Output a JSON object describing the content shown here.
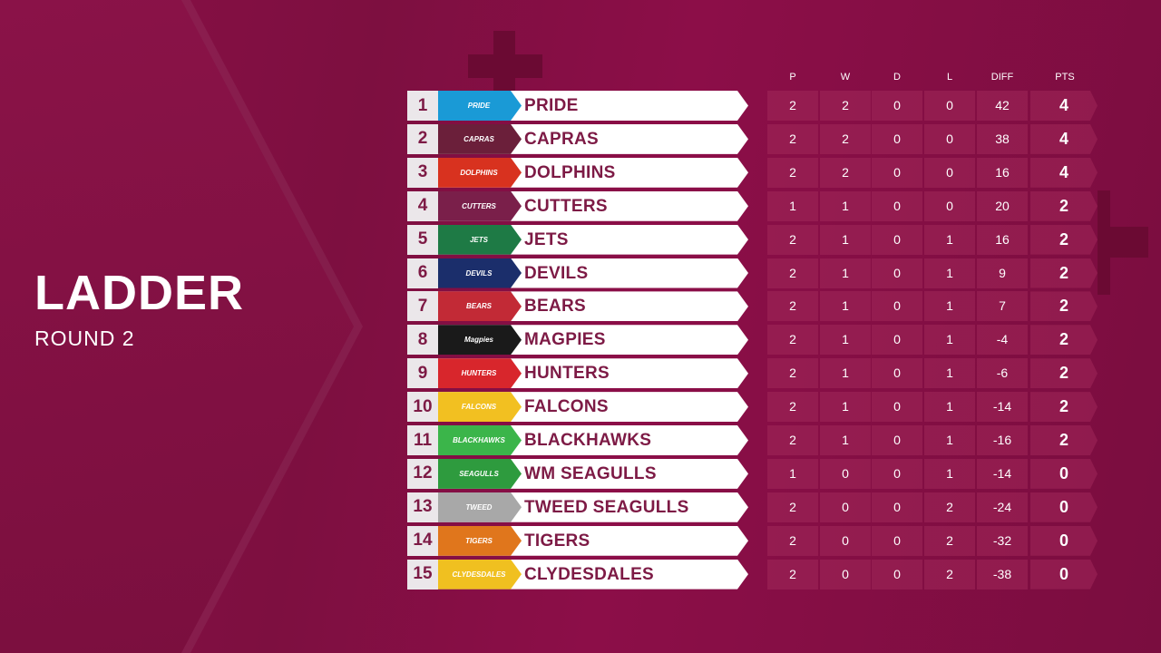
{
  "title": "LADDER",
  "subtitle": "ROUND 2",
  "columns": [
    "P",
    "W",
    "D",
    "L",
    "DIFF",
    "PTS"
  ],
  "colors": {
    "accent": "#7d1a45",
    "background": "#8a0f46"
  },
  "teams": [
    {
      "rank": "1",
      "name": "PRIDE",
      "p": "2",
      "w": "2",
      "d": "0",
      "l": "0",
      "diff": "42",
      "pts": "4",
      "logo_text": "PRIDE",
      "logo_bg": "#1a9ad6"
    },
    {
      "rank": "2",
      "name": "CAPRAS",
      "p": "2",
      "w": "2",
      "d": "0",
      "l": "0",
      "diff": "38",
      "pts": "4",
      "logo_text": "CAPRAS",
      "logo_bg": "#6b1f3a"
    },
    {
      "rank": "3",
      "name": "DOLPHINS",
      "p": "2",
      "w": "2",
      "d": "0",
      "l": "0",
      "diff": "16",
      "pts": "4",
      "logo_text": "DOLPHINS",
      "logo_bg": "#d8321f"
    },
    {
      "rank": "4",
      "name": "CUTTERS",
      "p": "1",
      "w": "1",
      "d": "0",
      "l": "0",
      "diff": "20",
      "pts": "2",
      "logo_text": "CUTTERS",
      "logo_bg": "#7a1f4a"
    },
    {
      "rank": "5",
      "name": "JETS",
      "p": "2",
      "w": "1",
      "d": "0",
      "l": "1",
      "diff": "16",
      "pts": "2",
      "logo_text": "JETS",
      "logo_bg": "#1e7a45"
    },
    {
      "rank": "6",
      "name": "DEVILS",
      "p": "2",
      "w": "1",
      "d": "0",
      "l": "1",
      "diff": "9",
      "pts": "2",
      "logo_text": "DEVILS",
      "logo_bg": "#1b2e6b"
    },
    {
      "rank": "7",
      "name": "BEARS",
      "p": "2",
      "w": "1",
      "d": "0",
      "l": "1",
      "diff": "7",
      "pts": "2",
      "logo_text": "BEARS",
      "logo_bg": "#c22a36"
    },
    {
      "rank": "8",
      "name": "MAGPIES",
      "p": "2",
      "w": "1",
      "d": "0",
      "l": "1",
      "diff": "-4",
      "pts": "2",
      "logo_text": "Magpies",
      "logo_bg": "#1a1a1a"
    },
    {
      "rank": "9",
      "name": "HUNTERS",
      "p": "2",
      "w": "1",
      "d": "0",
      "l": "1",
      "diff": "-6",
      "pts": "2",
      "logo_text": "HUNTERS",
      "logo_bg": "#d8262c"
    },
    {
      "rank": "10",
      "name": "FALCONS",
      "p": "2",
      "w": "1",
      "d": "0",
      "l": "1",
      "diff": "-14",
      "pts": "2",
      "logo_text": "FALCONS",
      "logo_bg": "#f2c021"
    },
    {
      "rank": "11",
      "name": "BLACKHAWKS",
      "p": "2",
      "w": "1",
      "d": "0",
      "l": "1",
      "diff": "-16",
      "pts": "2",
      "logo_text": "BLACKHAWKS",
      "logo_bg": "#3bb54a"
    },
    {
      "rank": "12",
      "name": "WM SEAGULLS",
      "p": "1",
      "w": "0",
      "d": "0",
      "l": "1",
      "diff": "-14",
      "pts": "0",
      "logo_text": "SEAGULLS",
      "logo_bg": "#2e9b3e"
    },
    {
      "rank": "13",
      "name": "TWEED SEAGULLS",
      "p": "2",
      "w": "0",
      "d": "0",
      "l": "2",
      "diff": "-24",
      "pts": "0",
      "logo_text": "TWEED",
      "logo_bg": "#a8a8a8"
    },
    {
      "rank": "14",
      "name": "TIGERS",
      "p": "2",
      "w": "0",
      "d": "0",
      "l": "2",
      "diff": "-32",
      "pts": "0",
      "logo_text": "TIGERS",
      "logo_bg": "#e0761c"
    },
    {
      "rank": "15",
      "name": "CLYDESDALES",
      "p": "2",
      "w": "0",
      "d": "0",
      "l": "2",
      "diff": "-38",
      "pts": "0",
      "logo_text": "CLYDESDALES",
      "logo_bg": "#f0c020"
    }
  ]
}
